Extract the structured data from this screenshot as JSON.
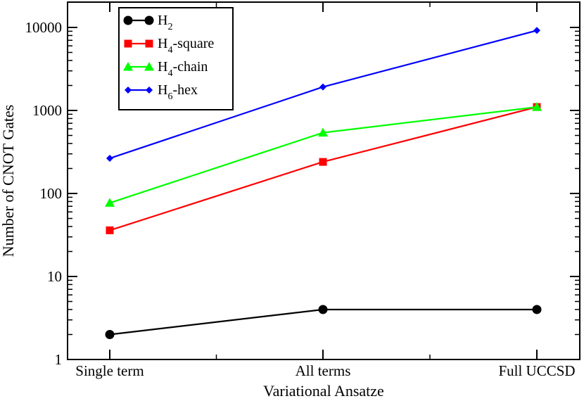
{
  "chart_data": {
    "type": "line",
    "yscale": "log",
    "title": "",
    "xlabel": "Variational Ansatze",
    "ylabel": "Number of CNOT Gates",
    "categories": [
      "Single term",
      "All terms",
      "Full UCCSD"
    ],
    "ylim": [
      1,
      20000
    ],
    "yticks": [
      1,
      10,
      100,
      1000,
      10000
    ],
    "ytick_labels": [
      "1",
      "10",
      "100",
      "1000",
      "10000"
    ],
    "legend_position": "top-left",
    "series": [
      {
        "name": "H2",
        "label_main": "H",
        "label_sub": "2",
        "label_rest": "",
        "color": "#000000",
        "marker": "circle",
        "values": [
          2,
          4,
          4
        ]
      },
      {
        "name": "H4-square",
        "label_main": "H",
        "label_sub": "4",
        "label_rest": "-square",
        "color": "#ff0000",
        "marker": "square",
        "values": [
          36,
          240,
          1100
        ]
      },
      {
        "name": "H4-chain",
        "label_main": "H",
        "label_sub": "4",
        "label_rest": "-chain",
        "color": "#00ff00",
        "marker": "triangle",
        "values": [
          77,
          540,
          1100
        ]
      },
      {
        "name": "H6-hex",
        "label_main": "H",
        "label_sub": "6",
        "label_rest": "-hex",
        "color": "#0000ff",
        "marker": "diamond",
        "values": [
          265,
          1920,
          9200
        ]
      }
    ]
  }
}
